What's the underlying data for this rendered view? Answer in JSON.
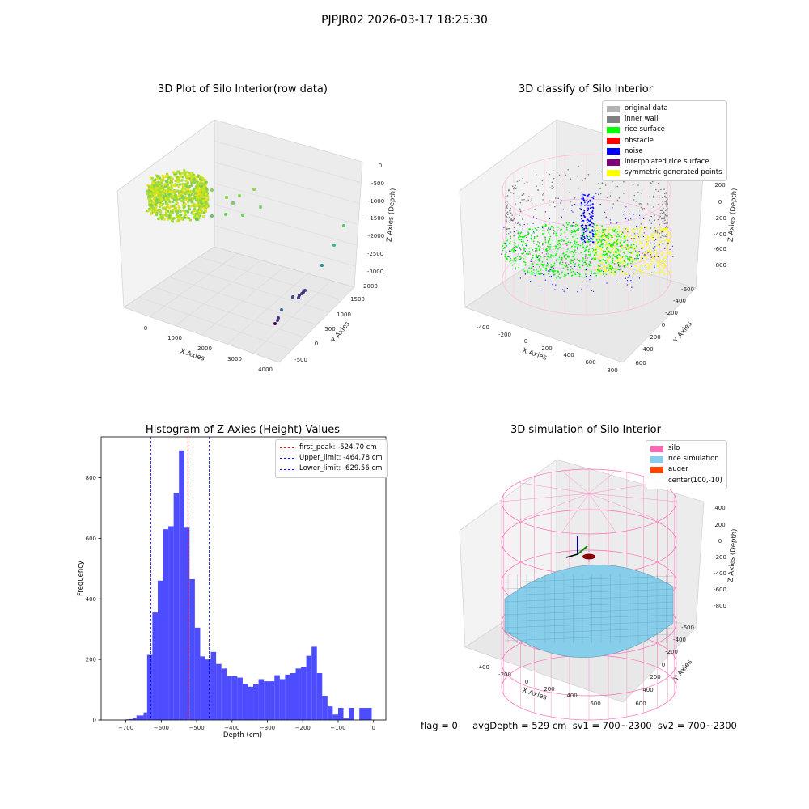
{
  "figure": {
    "suptitle": "PJPJR02 2026-03-17 18:25:30",
    "status_line": "flag = 0     avgDepth = 529 cm  sv1 = 700~2300  sv2 = 700~2300"
  },
  "chart_data": [
    {
      "type": "scatter",
      "title": "3D Plot of Silo Interior(row data)",
      "xlabel": "X Axies",
      "ylabel": "Y Axies",
      "zlabel": "Z Axies (Depth)",
      "x_ticks": [
        0,
        1000,
        2000,
        3000,
        4000
      ],
      "y_ticks": [
        -500,
        0,
        500,
        1000,
        1500,
        2000
      ],
      "z_ticks": [
        0,
        -500,
        -1000,
        -1500,
        -2000,
        -2500,
        -3000
      ],
      "colormap": "viridis"
    },
    {
      "type": "scatter",
      "title": "3D classify of Silo Interior",
      "xlabel": "X Axies",
      "ylabel": "Y Axies",
      "zlabel": "Z Axies (Depth)",
      "x_ticks": [
        -400,
        -200,
        0,
        200,
        400,
        600,
        800
      ],
      "y_ticks": [
        -600,
        -400,
        -200,
        0,
        200,
        400,
        600
      ],
      "z_ticks": [
        200,
        0,
        -200,
        -400,
        -600,
        -800
      ],
      "legend": [
        {
          "label": "original data",
          "color": "#b3b3b3"
        },
        {
          "label": "inner wall",
          "color": "#808080"
        },
        {
          "label": "rice surface",
          "color": "#00ff00"
        },
        {
          "label": "obstacle",
          "color": "#ff0000"
        },
        {
          "label": "noise",
          "color": "#0000ff"
        },
        {
          "label": "interpolated rice surface",
          "color": "#800080"
        },
        {
          "label": "symmetric generated points",
          "color": "#ffff00"
        }
      ]
    },
    {
      "type": "bar",
      "title": "Histogram of Z-Axies (Height) Values",
      "xlabel": "Depth (cm)",
      "ylabel": "Frequency",
      "xlim": [
        -770,
        35
      ],
      "ylim": [
        0,
        935
      ],
      "x_ticks": [
        -700,
        -600,
        -500,
        -400,
        -300,
        -200,
        -100,
        0
      ],
      "y_ticks": [
        0,
        200,
        400,
        600,
        800
      ],
      "bar_color": "#4d4dff",
      "bins": [
        {
          "x0": -700,
          "x1": -690,
          "v": 2
        },
        {
          "x0": -690,
          "x1": -680,
          "v": 3
        },
        {
          "x0": -680,
          "x1": -670,
          "v": 6
        },
        {
          "x0": -670,
          "x1": -650,
          "v": 15
        },
        {
          "x0": -650,
          "x1": -640,
          "v": 25
        },
        {
          "x0": -640,
          "x1": -625,
          "v": 215
        },
        {
          "x0": -625,
          "x1": -610,
          "v": 355
        },
        {
          "x0": -610,
          "x1": -595,
          "v": 460
        },
        {
          "x0": -595,
          "x1": -580,
          "v": 630
        },
        {
          "x0": -580,
          "x1": -565,
          "v": 640
        },
        {
          "x0": -565,
          "x1": -550,
          "v": 750
        },
        {
          "x0": -550,
          "x1": -535,
          "v": 890
        },
        {
          "x0": -535,
          "x1": -520,
          "v": 635
        },
        {
          "x0": -520,
          "x1": -505,
          "v": 465
        },
        {
          "x0": -505,
          "x1": -490,
          "v": 305
        },
        {
          "x0": -490,
          "x1": -475,
          "v": 210
        },
        {
          "x0": -475,
          "x1": -460,
          "v": 200
        },
        {
          "x0": -460,
          "x1": -445,
          "v": 225
        },
        {
          "x0": -445,
          "x1": -430,
          "v": 185
        },
        {
          "x0": -430,
          "x1": -415,
          "v": 170
        },
        {
          "x0": -415,
          "x1": -400,
          "v": 145
        },
        {
          "x0": -400,
          "x1": -385,
          "v": 145
        },
        {
          "x0": -385,
          "x1": -370,
          "v": 140
        },
        {
          "x0": -370,
          "x1": -355,
          "v": 120
        },
        {
          "x0": -355,
          "x1": -340,
          "v": 110
        },
        {
          "x0": -340,
          "x1": -325,
          "v": 118
        },
        {
          "x0": -325,
          "x1": -310,
          "v": 135
        },
        {
          "x0": -310,
          "x1": -295,
          "v": 128
        },
        {
          "x0": -295,
          "x1": -280,
          "v": 128
        },
        {
          "x0": -280,
          "x1": -265,
          "v": 148
        },
        {
          "x0": -265,
          "x1": -250,
          "v": 135
        },
        {
          "x0": -250,
          "x1": -235,
          "v": 150
        },
        {
          "x0": -235,
          "x1": -220,
          "v": 155
        },
        {
          "x0": -220,
          "x1": -205,
          "v": 170
        },
        {
          "x0": -205,
          "x1": -190,
          "v": 175
        },
        {
          "x0": -190,
          "x1": -175,
          "v": 212
        },
        {
          "x0": -175,
          "x1": -160,
          "v": 242
        },
        {
          "x0": -160,
          "x1": -145,
          "v": 155
        },
        {
          "x0": -145,
          "x1": -130,
          "v": 80
        },
        {
          "x0": -130,
          "x1": -115,
          "v": 45
        },
        {
          "x0": -115,
          "x1": -100,
          "v": 18
        },
        {
          "x0": -100,
          "x1": -85,
          "v": 40
        },
        {
          "x0": -85,
          "x1": -70,
          "v": 5
        },
        {
          "x0": -70,
          "x1": -55,
          "v": 40
        }
      ],
      "lines": [
        {
          "label": "first_peak: -524.70 cm",
          "x": -524.7,
          "color": "#ff0000"
        },
        {
          "label": "Upper_limit: -464.78 cm",
          "x": -464.78,
          "color": "#0000ff"
        },
        {
          "label": "Lower_limit: -629.56 cm",
          "x": -629.56,
          "color": "#0000ff"
        }
      ]
    },
    {
      "type": "scatter",
      "title": "3D simulation of Silo Interior",
      "xlabel": "X Axies",
      "ylabel": "Y Axies",
      "zlabel": "Z Axies (Depth)",
      "x_ticks": [
        -400,
        -200,
        0,
        200,
        400,
        600
      ],
      "y_ticks": [
        -600,
        -400,
        -200,
        0,
        200,
        400,
        600
      ],
      "z_ticks": [
        400,
        200,
        0,
        -200,
        -400,
        -600,
        -800
      ],
      "legend": [
        {
          "label": "silo",
          "color": "#ff69b4"
        },
        {
          "label": "rice simulation",
          "color": "#87ceeb"
        },
        {
          "label": "auger",
          "color": "#ff4500"
        },
        {
          "label": "center(100,-10)",
          "color": ""
        }
      ]
    }
  ]
}
